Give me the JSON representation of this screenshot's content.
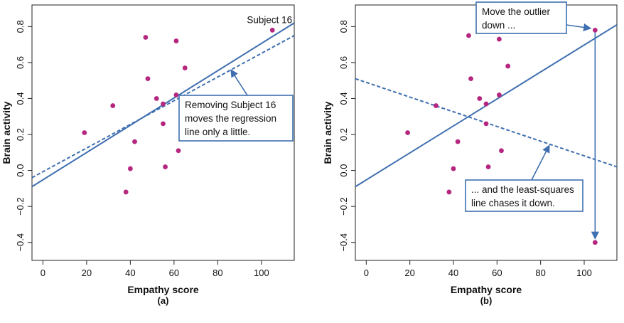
{
  "chart_data": [
    {
      "type": "scatter",
      "panel_label": "(a)",
      "xlabel": "Empathy score",
      "ylabel": "Brain activity",
      "xlim": [
        -5,
        115
      ],
      "ylim": [
        -0.5,
        0.92
      ],
      "x_ticks": [
        0,
        20,
        40,
        60,
        80,
        100
      ],
      "y_ticks": [
        -0.4,
        -0.2,
        0.0,
        0.2,
        0.4,
        0.6,
        0.8
      ],
      "tick_labels_x": [
        "0",
        "20",
        "40",
        "60",
        "80",
        "100"
      ],
      "tick_labels_y": [
        "−0.4",
        "−0.2",
        "0.0",
        "0.2",
        "0.4",
        "0.6",
        "0.8"
      ],
      "grid": false,
      "point_color": "#b5267f",
      "line_color": "#3f6fb0",
      "points": [
        {
          "x": 19,
          "y": 0.21
        },
        {
          "x": 32,
          "y": 0.36
        },
        {
          "x": 38,
          "y": -0.12
        },
        {
          "x": 40,
          "y": 0.01
        },
        {
          "x": 42,
          "y": 0.16
        },
        {
          "x": 47,
          "y": 0.74
        },
        {
          "x": 48,
          "y": 0.51
        },
        {
          "x": 52,
          "y": 0.4
        },
        {
          "x": 55,
          "y": 0.37
        },
        {
          "x": 55,
          "y": 0.26
        },
        {
          "x": 56,
          "y": 0.02
        },
        {
          "x": 61,
          "y": 0.72
        },
        {
          "x": 61,
          "y": 0.42
        },
        {
          "x": 62,
          "y": 0.11
        },
        {
          "x": 65,
          "y": 0.57
        },
        {
          "x": 105,
          "y": 0.78
        }
      ],
      "lines": [
        {
          "style": "solid",
          "x": [
            -5,
            115
          ],
          "y": [
            -0.09,
            0.82
          ]
        },
        {
          "style": "dashed",
          "x": [
            -5,
            115
          ],
          "y": [
            -0.04,
            0.75
          ]
        }
      ],
      "point_label": {
        "text": "Subject 16",
        "x": 105,
        "y": 0.78
      },
      "annotation": {
        "lines": [
          "Removing Subject 16",
          "moves the regression",
          "line only a little."
        ],
        "arrow_target": {
          "x": 86,
          "y": 0.56
        }
      }
    },
    {
      "type": "scatter",
      "panel_label": "(b)",
      "xlabel": "Empathy score",
      "ylabel": "Brain activity",
      "xlim": [
        -5,
        115
      ],
      "ylim": [
        -0.5,
        0.92
      ],
      "x_ticks": [
        0,
        20,
        40,
        60,
        80,
        100
      ],
      "y_ticks": [
        -0.4,
        -0.2,
        0.0,
        0.2,
        0.4,
        0.6,
        0.8
      ],
      "tick_labels_x": [
        "0",
        "20",
        "40",
        "60",
        "80",
        "100"
      ],
      "tick_labels_y": [
        "−0.4",
        "−0.2",
        "0.0",
        "0.2",
        "0.4",
        "0.6",
        "0.8"
      ],
      "grid": false,
      "point_color": "#b5267f",
      "line_color": "#3f6fb0",
      "points": [
        {
          "x": 19,
          "y": 0.21
        },
        {
          "x": 32,
          "y": 0.36
        },
        {
          "x": 38,
          "y": -0.12
        },
        {
          "x": 40,
          "y": 0.01
        },
        {
          "x": 42,
          "y": 0.16
        },
        {
          "x": 47,
          "y": 0.75
        },
        {
          "x": 48,
          "y": 0.51
        },
        {
          "x": 52,
          "y": 0.4
        },
        {
          "x": 55,
          "y": 0.37
        },
        {
          "x": 55,
          "y": 0.26
        },
        {
          "x": 56,
          "y": 0.02
        },
        {
          "x": 61,
          "y": 0.73
        },
        {
          "x": 61,
          "y": 0.42
        },
        {
          "x": 62,
          "y": 0.11
        },
        {
          "x": 65,
          "y": 0.58
        },
        {
          "x": 105,
          "y": 0.78
        },
        {
          "x": 105,
          "y": -0.4
        }
      ],
      "lines": [
        {
          "style": "solid",
          "x": [
            -5,
            115
          ],
          "y": [
            -0.09,
            0.81
          ]
        },
        {
          "style": "dashed",
          "x": [
            -5,
            115
          ],
          "y": [
            0.51,
            0.02
          ]
        }
      ],
      "move_arrow": {
        "x": 105,
        "y_from": 0.78,
        "y_to": -0.38
      },
      "annotations": [
        {
          "lines": [
            "Move the outlier",
            "down ..."
          ],
          "arrow_target": {
            "x": 103,
            "y": 0.79
          }
        },
        {
          "lines": [
            "... and the least-squares",
            "line chases it down."
          ],
          "arrow_target": {
            "x": 84,
            "y": 0.14
          }
        }
      ]
    }
  ]
}
